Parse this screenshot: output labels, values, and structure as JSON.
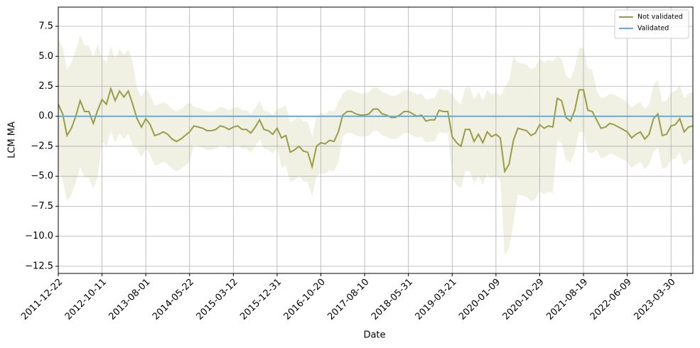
{
  "chart_data": {
    "type": "line",
    "xlabel": "Date",
    "ylabel": "LCM MA",
    "categories": [
      "2011-12-22",
      null,
      null,
      null,
      null,
      null,
      null,
      null,
      null,
      null,
      "2012-10-11",
      null,
      null,
      null,
      null,
      null,
      null,
      null,
      null,
      null,
      "2013-08-01",
      null,
      null,
      null,
      null,
      null,
      null,
      null,
      null,
      null,
      "2014-05-22",
      null,
      null,
      null,
      null,
      null,
      null,
      null,
      null,
      null,
      "2015-03-12",
      null,
      null,
      null,
      null,
      null,
      null,
      null,
      null,
      null,
      "2015-12-31",
      null,
      null,
      null,
      null,
      null,
      null,
      null,
      null,
      null,
      "2016-10-20",
      null,
      null,
      null,
      null,
      null,
      null,
      null,
      null,
      null,
      "2017-08-10",
      null,
      null,
      null,
      null,
      null,
      null,
      null,
      null,
      null,
      "2018-05-31",
      null,
      null,
      null,
      null,
      null,
      null,
      null,
      null,
      null,
      "2019-03-21",
      null,
      null,
      null,
      null,
      null,
      null,
      null,
      null,
      null,
      "2020-01-09",
      null,
      null,
      null,
      null,
      null,
      null,
      null,
      null,
      null,
      "2020-10-29",
      null,
      null,
      null,
      null,
      null,
      null,
      null,
      null,
      null,
      "2021-08-19",
      null,
      null,
      null,
      null,
      null,
      null,
      null,
      null,
      null,
      "2022-06-09",
      null,
      null,
      null,
      null,
      null,
      null,
      null,
      null,
      null,
      "2023-03-30",
      null,
      null,
      null,
      null,
      null
    ],
    "series": [
      {
        "name": "Not validated",
        "color": "#9b9c45",
        "values": [
          1.0,
          0.2,
          -1.6,
          -1.0,
          0.0,
          1.3,
          0.4,
          0.4,
          -0.6,
          0.5,
          1.4,
          1.0,
          2.3,
          1.3,
          2.1,
          1.6,
          2.1,
          1.0,
          -0.2,
          -0.9,
          -0.2,
          -0.7,
          -1.6,
          -1.5,
          -1.3,
          -1.5,
          -1.9,
          -2.1,
          -1.9,
          -1.6,
          -1.3,
          -0.8,
          -0.9,
          -1.0,
          -1.2,
          -1.2,
          -1.1,
          -0.8,
          -0.9,
          -1.1,
          -0.9,
          -0.8,
          -1.1,
          -1.1,
          -1.4,
          -0.9,
          -0.3,
          -1.1,
          -1.2,
          -1.5,
          -1.0,
          -1.8,
          -1.6,
          -3.0,
          -2.8,
          -2.5,
          -2.9,
          -3.0,
          -4.2,
          -2.5,
          -2.2,
          -2.3,
          -2.0,
          -2.1,
          -1.3,
          0.1,
          0.4,
          0.4,
          0.2,
          0.1,
          0.1,
          0.2,
          0.6,
          0.6,
          0.2,
          0.1,
          -0.1,
          -0.1,
          0.1,
          0.4,
          0.4,
          0.2,
          0.0,
          0.1,
          -0.4,
          -0.3,
          -0.3,
          0.5,
          0.4,
          0.4,
          -1.7,
          -2.2,
          -2.5,
          -1.1,
          -1.1,
          -2.1,
          -1.5,
          -2.2,
          -1.3,
          -1.7,
          -1.5,
          -1.8,
          -4.6,
          -4.0,
          -2.0,
          -1.0,
          -1.1,
          -1.2,
          -1.6,
          -1.4,
          -0.7,
          -1.0,
          -0.8,
          -0.9,
          1.5,
          1.3,
          -0.1,
          -0.4,
          0.5,
          2.2,
          2.2,
          0.5,
          0.4,
          -0.3,
          -1.0,
          -0.9,
          -0.6,
          -0.7,
          -0.9,
          -1.1,
          -1.3,
          -1.8,
          -1.5,
          -1.3,
          -1.9,
          -1.5,
          -0.2,
          0.2,
          -1.6,
          -1.5,
          -0.8,
          -0.7,
          -0.2,
          -1.3,
          -0.9,
          -0.8
        ]
      },
      {
        "name": "Validated",
        "color": "#5dade2",
        "values": [
          0,
          0,
          0,
          0,
          0,
          0,
          0,
          0,
          0,
          0,
          0,
          0,
          0,
          0,
          0,
          0,
          0,
          0,
          0,
          0,
          0,
          0,
          0,
          0,
          0,
          0,
          0,
          0,
          0,
          0,
          0,
          0,
          0,
          0,
          0,
          0,
          0,
          0,
          0,
          0,
          0,
          0,
          0,
          0,
          0,
          0,
          0,
          0,
          0,
          0,
          0,
          0,
          0,
          0,
          0,
          0,
          0,
          0,
          0,
          0,
          0,
          0,
          0,
          0,
          0,
          0,
          0,
          0,
          0,
          0,
          0,
          0,
          0,
          0,
          0,
          0,
          0,
          0,
          0,
          0,
          0,
          0,
          0,
          0,
          0,
          0,
          0,
          0,
          0,
          0,
          0,
          0,
          0,
          0,
          0,
          0,
          0,
          0,
          0,
          0,
          0,
          0,
          0,
          0,
          0,
          0,
          0,
          0,
          0,
          0,
          0,
          0,
          0,
          0,
          0,
          0,
          0,
          0,
          0,
          0,
          0,
          0,
          0,
          0,
          0,
          0,
          0,
          0,
          0,
          0,
          0,
          0,
          0,
          0,
          0,
          0,
          0,
          0,
          0,
          0,
          0,
          0,
          0,
          0,
          0,
          0
        ]
      }
    ],
    "band": {
      "color": "#9b9c45",
      "upper": [
        6.5,
        5.7,
        3.9,
        4.5,
        5.5,
        6.8,
        5.9,
        5.9,
        4.9,
        6.0,
        4.9,
        4.5,
        5.8,
        4.8,
        5.6,
        5.1,
        5.6,
        4.5,
        2.3,
        1.6,
        2.3,
        1.8,
        0.9,
        1.0,
        1.2,
        1.0,
        0.6,
        0.4,
        0.6,
        0.9,
        1.2,
        0.8,
        0.7,
        0.6,
        0.4,
        0.4,
        0.5,
        0.8,
        0.7,
        0.5,
        0.7,
        0.8,
        0.5,
        0.5,
        0.2,
        0.7,
        1.3,
        0.5,
        0.4,
        0.1,
        0.6,
        0.7,
        0.9,
        -0.5,
        -0.3,
        0.0,
        -0.4,
        -0.5,
        -1.7,
        0.0,
        0.3,
        0.2,
        0.5,
        0.4,
        1.2,
        1.9,
        2.2,
        2.2,
        2.0,
        1.9,
        1.9,
        2.0,
        2.4,
        2.4,
        2.0,
        1.9,
        1.7,
        1.7,
        1.9,
        2.2,
        2.2,
        2.0,
        1.8,
        1.9,
        1.4,
        1.5,
        1.5,
        2.3,
        2.2,
        2.2,
        1.8,
        1.3,
        1.0,
        2.4,
        2.4,
        1.4,
        2.0,
        1.3,
        2.2,
        1.8,
        2.0,
        1.7,
        2.4,
        3.0,
        5.0,
        4.5,
        4.4,
        4.3,
        3.9,
        4.1,
        4.8,
        4.5,
        4.7,
        4.6,
        5.0,
        4.8,
        3.4,
        3.1,
        4.0,
        5.7,
        5.7,
        4.0,
        3.9,
        2.2,
        1.5,
        1.6,
        1.9,
        1.8,
        1.6,
        1.4,
        1.2,
        0.7,
        1.0,
        1.2,
        0.6,
        1.0,
        2.6,
        3.0,
        1.2,
        1.3,
        2.0,
        2.1,
        2.6,
        1.5,
        1.9,
        2.0
      ],
      "lower": [
        -4.5,
        -5.3,
        -7.1,
        -6.5,
        -5.5,
        -4.2,
        -5.1,
        -5.1,
        -6.1,
        -5.0,
        -2.1,
        -2.5,
        -1.2,
        -2.2,
        -1.4,
        -1.9,
        -1.4,
        -2.5,
        -2.7,
        -3.4,
        -2.7,
        -3.2,
        -4.1,
        -4.0,
        -3.8,
        -4.0,
        -4.4,
        -4.6,
        -4.4,
        -4.1,
        -3.8,
        -2.4,
        -2.5,
        -2.6,
        -2.8,
        -2.8,
        -2.7,
        -2.4,
        -2.5,
        -2.7,
        -2.5,
        -2.4,
        -2.7,
        -2.7,
        -3.0,
        -2.5,
        -1.9,
        -2.7,
        -2.8,
        -3.1,
        -2.6,
        -4.3,
        -4.1,
        -5.5,
        -5.3,
        -5.0,
        -5.4,
        -5.5,
        -6.7,
        -5.0,
        -4.7,
        -4.8,
        -4.5,
        -4.6,
        -3.8,
        -1.7,
        -1.4,
        -1.4,
        -1.6,
        -1.7,
        -1.7,
        -1.6,
        -1.2,
        -1.2,
        -1.6,
        -1.7,
        -1.9,
        -1.9,
        -1.7,
        -1.4,
        -1.4,
        -1.6,
        -1.8,
        -1.7,
        -2.2,
        -2.1,
        -2.1,
        -1.3,
        -1.4,
        -1.4,
        -5.2,
        -5.7,
        -6.0,
        -4.6,
        -4.6,
        -5.6,
        -5.0,
        -5.7,
        -4.8,
        -5.2,
        -5.0,
        -5.3,
        -11.6,
        -11.0,
        -9.0,
        -6.5,
        -6.6,
        -6.7,
        -7.1,
        -6.9,
        -6.2,
        -6.5,
        -6.3,
        -6.4,
        -2.0,
        -2.2,
        -3.6,
        -3.9,
        -3.0,
        -1.3,
        -1.3,
        -3.0,
        -3.1,
        -2.8,
        -3.5,
        -3.4,
        -3.1,
        -3.2,
        -3.4,
        -3.6,
        -3.8,
        -4.3,
        -4.0,
        -3.8,
        -4.4,
        -4.0,
        -3.0,
        -2.6,
        -4.4,
        -4.3,
        -3.6,
        -3.5,
        -3.0,
        -4.1,
        -3.7,
        -3.6
      ]
    },
    "ylim": [
      -13.1,
      9.1
    ],
    "yticks": [
      7.5,
      {
        "value": 5,
        "label": "5.0"
      },
      2.5,
      {
        "value": 0,
        "label": "0.0"
      },
      {
        "value": -2.5,
        "label": "−2.5"
      },
      {
        "value": -5,
        "label": "−5.0"
      },
      {
        "value": -7.5,
        "label": "−7.5"
      },
      {
        "value": -10,
        "label": "−10.0"
      },
      {
        "value": -12.5,
        "label": "−12.5"
      }
    ],
    "grid": true,
    "legend": "upper right"
  }
}
